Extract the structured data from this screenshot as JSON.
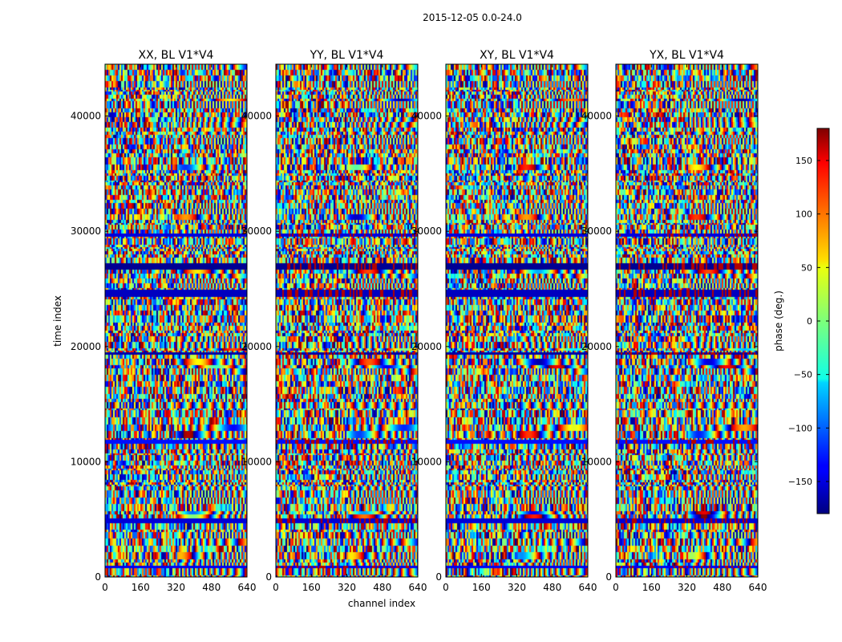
{
  "chart_data": {
    "type": "heatmap",
    "title": "2015-12-05 0.0-24.0",
    "xlabel": "channel index",
    "ylabel": "time index",
    "xlim": [
      0,
      640
    ],
    "ylim": [
      0,
      44500
    ],
    "x_ticks": [
      0,
      160,
      320,
      480,
      640
    ],
    "x_tick_labels": [
      "0",
      "160",
      "320",
      "480",
      "640"
    ],
    "y_ticks": [
      0,
      10000,
      20000,
      30000,
      40000
    ],
    "y_tick_labels": [
      "0",
      "10000",
      "20000",
      "30000",
      "40000"
    ],
    "panels": [
      {
        "name": "xx",
        "title": "XX, BL V1*V4"
      },
      {
        "name": "yy",
        "title": "YY, BL V1*V4"
      },
      {
        "name": "xy",
        "title": "XY, BL V1*V4"
      },
      {
        "name": "yx",
        "title": "YX, BL V1*V4"
      }
    ],
    "colorbar": {
      "label": "phase (deg.)",
      "range": [
        -180,
        180
      ],
      "ticks": [
        150,
        100,
        50,
        0,
        -50,
        -100,
        -150
      ],
      "tick_labels": [
        "150",
        "100",
        "50",
        "0",
        "−50",
        "−100",
        "−150"
      ],
      "colormap": "jet"
    }
  }
}
